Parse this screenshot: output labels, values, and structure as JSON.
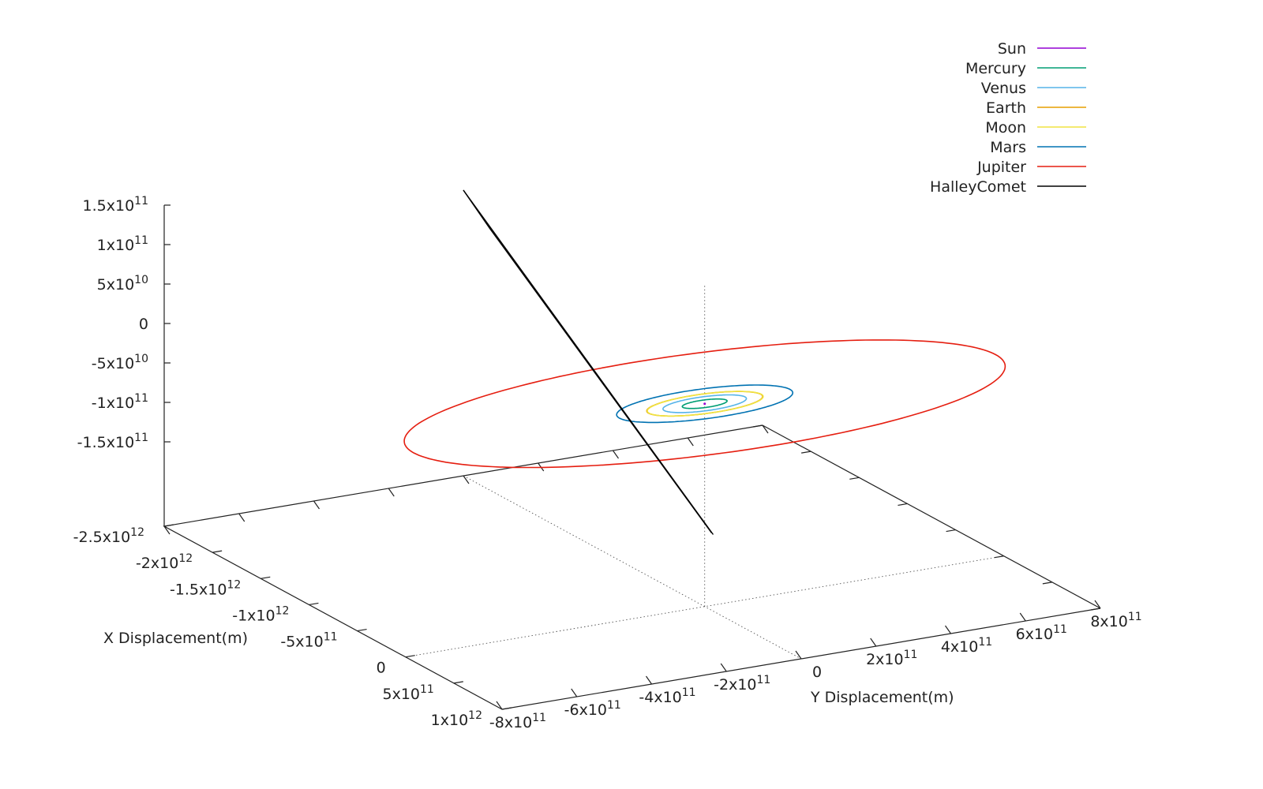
{
  "chart_data": {
    "type": "line3d",
    "xlabel": "X Displacement(m)",
    "ylabel": "Y Displacement(m)",
    "zlabel": "",
    "x_ticks": [
      {
        "m": "-2.5x10",
        "e": "12"
      },
      {
        "m": "-2x10",
        "e": "12"
      },
      {
        "m": "-1.5x10",
        "e": "12"
      },
      {
        "m": "-1x10",
        "e": "12"
      },
      {
        "m": "-5x10",
        "e": "11"
      },
      {
        "m": "0",
        "e": ""
      },
      {
        "m": "5x10",
        "e": "11"
      },
      {
        "m": "1x10",
        "e": "12"
      }
    ],
    "y_ticks": [
      {
        "m": "-8x10",
        "e": "11"
      },
      {
        "m": "-6x10",
        "e": "11"
      },
      {
        "m": "-4x10",
        "e": "11"
      },
      {
        "m": "-2x10",
        "e": "11"
      },
      {
        "m": "0",
        "e": ""
      },
      {
        "m": "2x10",
        "e": "11"
      },
      {
        "m": "4x10",
        "e": "11"
      },
      {
        "m": "6x10",
        "e": "11"
      },
      {
        "m": "8x10",
        "e": "11"
      }
    ],
    "z_ticks": [
      {
        "m": "1.5x10",
        "e": "11"
      },
      {
        "m": "1x10",
        "e": "11"
      },
      {
        "m": "5x10",
        "e": "10"
      },
      {
        "m": "0",
        "e": ""
      },
      {
        "m": "-5x10",
        "e": "10"
      },
      {
        "m": "-1x10",
        "e": "11"
      },
      {
        "m": "-1.5x10",
        "e": "11"
      }
    ],
    "xlim": [
      -2500000000000.0,
      1000000000000.0
    ],
    "ylim": [
      -800000000000.0,
      800000000000.0
    ],
    "zlim": [
      -150000000000.0,
      150000000000.0
    ],
    "legend_position": "top-right",
    "series": [
      {
        "name": "Sun",
        "color": "#9400d3",
        "orbit_radius": 0
      },
      {
        "name": "Mercury",
        "color": "#009e73",
        "orbit_radius": 58000000000.0
      },
      {
        "name": "Venus",
        "color": "#56b4e9",
        "orbit_radius": 108000000000.0
      },
      {
        "name": "Earth",
        "color": "#e69f00",
        "orbit_radius": 150000000000.0
      },
      {
        "name": "Moon",
        "color": "#f0e442",
        "orbit_radius": 150000000000.0
      },
      {
        "name": "Mars",
        "color": "#0072b2",
        "orbit_radius": 228000000000.0
      },
      {
        "name": "Jupiter",
        "color": "#e51e10",
        "orbit_radius": 778000000000.0
      },
      {
        "name": "HalleyComet",
        "color": "#000000",
        "trajectory": "x from -2.5e12 to 8.8e10, z from 1.1e11 to -1.6e11"
      }
    ]
  }
}
